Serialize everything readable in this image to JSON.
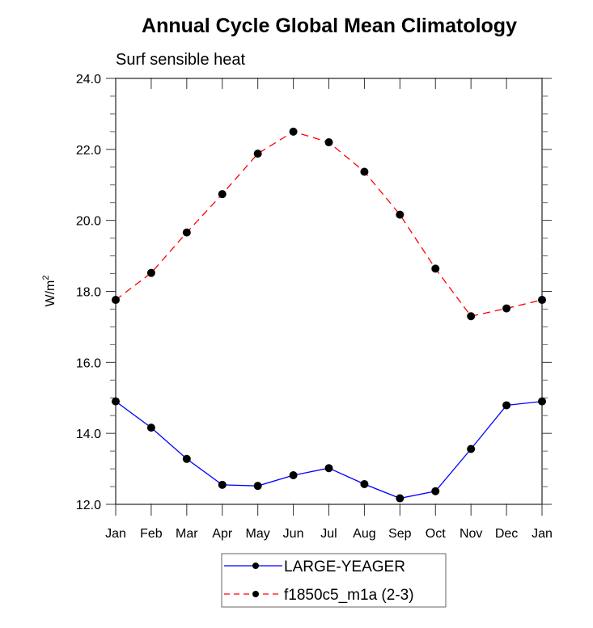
{
  "chart_data": {
    "type": "line",
    "title": "Annual Cycle Global Mean Climatology",
    "subtitle": "Surf sensible heat",
    "xlabel": "",
    "ylabel": "W/m",
    "ylabel_superscript": "2",
    "categories": [
      "Jan",
      "Feb",
      "Mar",
      "Apr",
      "May",
      "Jun",
      "Jul",
      "Aug",
      "Sep",
      "Oct",
      "Nov",
      "Dec",
      "Jan"
    ],
    "ylim": [
      12.0,
      24.0
    ],
    "yticks_major": [
      12.0,
      14.0,
      16.0,
      18.0,
      20.0,
      22.0,
      24.0
    ],
    "ytick_labels": [
      "12.0",
      "14.0",
      "16.0",
      "18.0",
      "20.0",
      "22.0",
      "24.0"
    ],
    "yticks_minor_step": 0.5,
    "grid": false,
    "legend_position": "bottom-center",
    "series": [
      {
        "name": "LARGE-YEAGER",
        "color": "#0000ff",
        "line_style": "solid",
        "marker": "filled-circle",
        "marker_color": "#000000",
        "values": [
          14.9,
          14.16,
          13.28,
          12.55,
          12.52,
          12.82,
          13.02,
          12.57,
          12.17,
          12.37,
          13.56,
          14.79,
          14.9
        ]
      },
      {
        "name": "f1850c5_m1a (2-3)",
        "color": "#ff0000",
        "line_style": "dashed",
        "marker": "filled-circle",
        "marker_color": "#000000",
        "values": [
          17.76,
          18.52,
          19.66,
          20.74,
          21.88,
          22.5,
          22.2,
          21.37,
          20.16,
          18.64,
          17.3,
          17.52,
          17.76
        ]
      }
    ]
  }
}
